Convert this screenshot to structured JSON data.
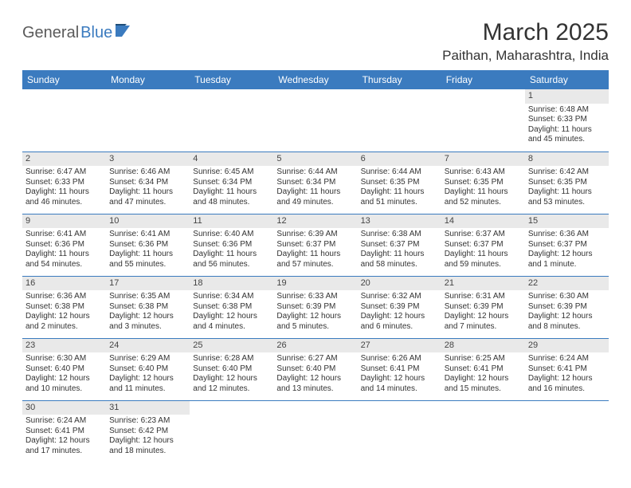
{
  "logo": {
    "part1": "General",
    "part2": "Blue"
  },
  "title": "March 2025",
  "location": "Paithan, Maharashtra, India",
  "colors": {
    "header_bg": "#3b7bbf",
    "header_text": "#ffffff",
    "daynum_bg": "#e9e9e9",
    "border": "#3b7bbf",
    "text": "#333333",
    "logo_gray": "#5a5a5a",
    "logo_blue": "#3b7bbf"
  },
  "weekdays": [
    "Sunday",
    "Monday",
    "Tuesday",
    "Wednesday",
    "Thursday",
    "Friday",
    "Saturday"
  ],
  "weeks": [
    [
      null,
      null,
      null,
      null,
      null,
      null,
      {
        "n": "1",
        "sr": "Sunrise: 6:48 AM",
        "ss": "Sunset: 6:33 PM",
        "dl": "Daylight: 11 hours and 45 minutes."
      }
    ],
    [
      {
        "n": "2",
        "sr": "Sunrise: 6:47 AM",
        "ss": "Sunset: 6:33 PM",
        "dl": "Daylight: 11 hours and 46 minutes."
      },
      {
        "n": "3",
        "sr": "Sunrise: 6:46 AM",
        "ss": "Sunset: 6:34 PM",
        "dl": "Daylight: 11 hours and 47 minutes."
      },
      {
        "n": "4",
        "sr": "Sunrise: 6:45 AM",
        "ss": "Sunset: 6:34 PM",
        "dl": "Daylight: 11 hours and 48 minutes."
      },
      {
        "n": "5",
        "sr": "Sunrise: 6:44 AM",
        "ss": "Sunset: 6:34 PM",
        "dl": "Daylight: 11 hours and 49 minutes."
      },
      {
        "n": "6",
        "sr": "Sunrise: 6:44 AM",
        "ss": "Sunset: 6:35 PM",
        "dl": "Daylight: 11 hours and 51 minutes."
      },
      {
        "n": "7",
        "sr": "Sunrise: 6:43 AM",
        "ss": "Sunset: 6:35 PM",
        "dl": "Daylight: 11 hours and 52 minutes."
      },
      {
        "n": "8",
        "sr": "Sunrise: 6:42 AM",
        "ss": "Sunset: 6:35 PM",
        "dl": "Daylight: 11 hours and 53 minutes."
      }
    ],
    [
      {
        "n": "9",
        "sr": "Sunrise: 6:41 AM",
        "ss": "Sunset: 6:36 PM",
        "dl": "Daylight: 11 hours and 54 minutes."
      },
      {
        "n": "10",
        "sr": "Sunrise: 6:41 AM",
        "ss": "Sunset: 6:36 PM",
        "dl": "Daylight: 11 hours and 55 minutes."
      },
      {
        "n": "11",
        "sr": "Sunrise: 6:40 AM",
        "ss": "Sunset: 6:36 PM",
        "dl": "Daylight: 11 hours and 56 minutes."
      },
      {
        "n": "12",
        "sr": "Sunrise: 6:39 AM",
        "ss": "Sunset: 6:37 PM",
        "dl": "Daylight: 11 hours and 57 minutes."
      },
      {
        "n": "13",
        "sr": "Sunrise: 6:38 AM",
        "ss": "Sunset: 6:37 PM",
        "dl": "Daylight: 11 hours and 58 minutes."
      },
      {
        "n": "14",
        "sr": "Sunrise: 6:37 AM",
        "ss": "Sunset: 6:37 PM",
        "dl": "Daylight: 11 hours and 59 minutes."
      },
      {
        "n": "15",
        "sr": "Sunrise: 6:36 AM",
        "ss": "Sunset: 6:37 PM",
        "dl": "Daylight: 12 hours and 1 minute."
      }
    ],
    [
      {
        "n": "16",
        "sr": "Sunrise: 6:36 AM",
        "ss": "Sunset: 6:38 PM",
        "dl": "Daylight: 12 hours and 2 minutes."
      },
      {
        "n": "17",
        "sr": "Sunrise: 6:35 AM",
        "ss": "Sunset: 6:38 PM",
        "dl": "Daylight: 12 hours and 3 minutes."
      },
      {
        "n": "18",
        "sr": "Sunrise: 6:34 AM",
        "ss": "Sunset: 6:38 PM",
        "dl": "Daylight: 12 hours and 4 minutes."
      },
      {
        "n": "19",
        "sr": "Sunrise: 6:33 AM",
        "ss": "Sunset: 6:39 PM",
        "dl": "Daylight: 12 hours and 5 minutes."
      },
      {
        "n": "20",
        "sr": "Sunrise: 6:32 AM",
        "ss": "Sunset: 6:39 PM",
        "dl": "Daylight: 12 hours and 6 minutes."
      },
      {
        "n": "21",
        "sr": "Sunrise: 6:31 AM",
        "ss": "Sunset: 6:39 PM",
        "dl": "Daylight: 12 hours and 7 minutes."
      },
      {
        "n": "22",
        "sr": "Sunrise: 6:30 AM",
        "ss": "Sunset: 6:39 PM",
        "dl": "Daylight: 12 hours and 8 minutes."
      }
    ],
    [
      {
        "n": "23",
        "sr": "Sunrise: 6:30 AM",
        "ss": "Sunset: 6:40 PM",
        "dl": "Daylight: 12 hours and 10 minutes."
      },
      {
        "n": "24",
        "sr": "Sunrise: 6:29 AM",
        "ss": "Sunset: 6:40 PM",
        "dl": "Daylight: 12 hours and 11 minutes."
      },
      {
        "n": "25",
        "sr": "Sunrise: 6:28 AM",
        "ss": "Sunset: 6:40 PM",
        "dl": "Daylight: 12 hours and 12 minutes."
      },
      {
        "n": "26",
        "sr": "Sunrise: 6:27 AM",
        "ss": "Sunset: 6:40 PM",
        "dl": "Daylight: 12 hours and 13 minutes."
      },
      {
        "n": "27",
        "sr": "Sunrise: 6:26 AM",
        "ss": "Sunset: 6:41 PM",
        "dl": "Daylight: 12 hours and 14 minutes."
      },
      {
        "n": "28",
        "sr": "Sunrise: 6:25 AM",
        "ss": "Sunset: 6:41 PM",
        "dl": "Daylight: 12 hours and 15 minutes."
      },
      {
        "n": "29",
        "sr": "Sunrise: 6:24 AM",
        "ss": "Sunset: 6:41 PM",
        "dl": "Daylight: 12 hours and 16 minutes."
      }
    ],
    [
      {
        "n": "30",
        "sr": "Sunrise: 6:24 AM",
        "ss": "Sunset: 6:41 PM",
        "dl": "Daylight: 12 hours and 17 minutes."
      },
      {
        "n": "31",
        "sr": "Sunrise: 6:23 AM",
        "ss": "Sunset: 6:42 PM",
        "dl": "Daylight: 12 hours and 18 minutes."
      },
      null,
      null,
      null,
      null,
      null
    ]
  ]
}
